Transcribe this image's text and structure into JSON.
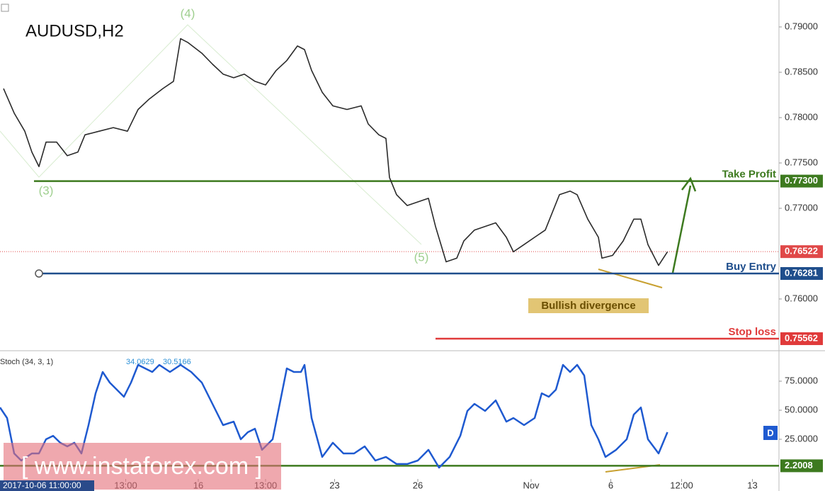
{
  "chart_data": [
    {
      "type": "line",
      "title": "AUDUSD,H2",
      "xlim": [
        0,
        440
      ],
      "xticks": [
        {
          "value": 71,
          "label": "13:00"
        },
        {
          "value": 112,
          "label": "16"
        },
        {
          "value": 150,
          "label": "13:00"
        },
        {
          "value": 189,
          "label": "23"
        },
        {
          "value": 236,
          "label": "26"
        },
        {
          "value": 300,
          "label": "Nov"
        },
        {
          "value": 345,
          "label": "6"
        },
        {
          "value": 385,
          "label": "12:00"
        },
        {
          "value": 425,
          "label": "13"
        }
      ],
      "ylim": [
        0.75445,
        0.79297
      ],
      "yticks": [
        {
          "value": 0.79,
          "label": "0.79000"
        },
        {
          "value": 0.785,
          "label": "0.78500"
        },
        {
          "value": 0.78,
          "label": "0.78000"
        },
        {
          "value": 0.775,
          "label": "0.77500"
        },
        {
          "value": 0.77,
          "label": "0.77000"
        },
        {
          "value": 0.76,
          "label": "0.76000"
        }
      ],
      "grid": false,
      "series": [
        {
          "color": "#2b2b2b",
          "x": [
            2,
            8,
            14,
            18,
            22,
            26,
            32,
            38,
            44,
            48,
            56,
            64,
            72,
            78,
            84,
            92,
            98,
            102,
            106,
            114,
            120,
            126,
            132,
            138,
            144,
            150,
            156,
            162,
            168,
            172,
            176,
            182,
            188,
            196,
            204,
            208,
            214,
            218,
            220,
            224,
            230,
            236,
            242,
            246,
            252,
            258,
            262,
            268,
            274,
            280,
            286,
            290,
            296,
            302,
            308,
            316,
            322,
            326,
            332,
            338,
            340,
            346,
            352,
            358,
            362,
            366,
            372,
            377
          ],
          "values": [
            0.7832,
            0.7805,
            0.7785,
            0.7762,
            0.7746,
            0.7773,
            0.7773,
            0.7758,
            0.7762,
            0.7781,
            0.7785,
            0.7789,
            0.7785,
            0.7809,
            0.782,
            0.7832,
            0.784,
            0.7887,
            0.7883,
            0.7871,
            0.7859,
            0.7848,
            0.7844,
            0.7848,
            0.784,
            0.7836,
            0.7852,
            0.7863,
            0.7879,
            0.7875,
            0.7852,
            0.7828,
            0.7813,
            0.7809,
            0.7813,
            0.7793,
            0.7781,
            0.7777,
            0.7734,
            0.7715,
            0.7703,
            0.7707,
            0.7711,
            0.768,
            0.7641,
            0.7645,
            0.7664,
            0.7676,
            0.768,
            0.7684,
            0.7668,
            0.7652,
            0.766,
            0.7668,
            0.7676,
            0.7715,
            0.7719,
            0.7715,
            0.7688,
            0.7668,
            0.7645,
            0.7648,
            0.7664,
            0.7688,
            0.7688,
            0.766,
            0.7637,
            0.7652
          ]
        }
      ],
      "levels": [
        {
          "name": "Take Profit",
          "value": 0.773,
          "label": "0.77300",
          "color": "#3d7a1f"
        },
        {
          "name": "Buy Entry",
          "value": 0.76281,
          "label": "0.76281",
          "color": "#1f4e8c"
        },
        {
          "name": "Stop loss",
          "value": 0.75562,
          "label": "0.75562",
          "color": "#e03a3a"
        }
      ],
      "current_price": {
        "value": 0.76522,
        "label": "0.76522",
        "color": "#e04848"
      },
      "waves": [
        "(3)",
        "(4)",
        "(5)"
      ],
      "annotation": "Bullish divergence"
    },
    {
      "type": "line",
      "title": "Stoch (34, 3, 1)",
      "readings": [
        34.0629,
        30.5166
      ],
      "xlim": [
        0,
        440
      ],
      "ylim": [
        -19.5,
        100
      ],
      "yticks": [
        {
          "value": 75,
          "label": "75.0000"
        },
        {
          "value": 50,
          "label": "50.0000"
        },
        {
          "value": 25,
          "label": "25.0000"
        }
      ],
      "series": [
        {
          "color": "#1f5ad0",
          "x": [
            0,
            4,
            8,
            12,
            18,
            22,
            26,
            30,
            34,
            38,
            42,
            46,
            50,
            54,
            58,
            62,
            66,
            70,
            74,
            78,
            82,
            86,
            90,
            96,
            102,
            108,
            114,
            120,
            126,
            132,
            136,
            140,
            144,
            148,
            154,
            158,
            162,
            166,
            170,
            172,
            176,
            182,
            188,
            194,
            200,
            206,
            212,
            218,
            224,
            230,
            236,
            242,
            248,
            254,
            260,
            264,
            268,
            274,
            280,
            286,
            290,
            296,
            302,
            306,
            310,
            314,
            318,
            322,
            326,
            330,
            334,
            338,
            342,
            348,
            354,
            358,
            362,
            366,
            372,
            377
          ],
          "values": [
            52.4,
            43.3,
            12.8,
            6.7,
            12.8,
            12.8,
            25.0,
            28.0,
            22.0,
            18.9,
            22.0,
            12.8,
            37.2,
            64.6,
            82.9,
            73.8,
            67.7,
            61.6,
            73.8,
            89.0,
            86.0,
            82.9,
            89.0,
            82.9,
            89.0,
            82.9,
            73.8,
            55.5,
            37.2,
            40.2,
            25.0,
            31.1,
            34.1,
            15.9,
            25.0,
            55.5,
            86.0,
            82.9,
            82.9,
            89.0,
            43.3,
            9.8,
            22.0,
            12.8,
            12.8,
            18.9,
            6.7,
            9.8,
            3.7,
            3.7,
            6.7,
            15.9,
            0.6,
            9.8,
            28.0,
            49.4,
            55.5,
            49.4,
            58.5,
            40.2,
            43.3,
            37.2,
            43.3,
            64.6,
            61.6,
            67.7,
            89.0,
            82.9,
            89.0,
            79.9,
            37.2,
            25.0,
            9.8,
            15.9,
            25.0,
            46.3,
            52.4,
            25.0,
            12.8,
            31.1
          ]
        }
      ],
      "levels": [
        {
          "value": 2.2008,
          "color": "#3d7a1f"
        }
      ],
      "badge": "D"
    }
  ],
  "overlay": {
    "watermark": "[ www.instaforex.com ]",
    "crosshair_time": "2017-10-06 11:00:00"
  }
}
